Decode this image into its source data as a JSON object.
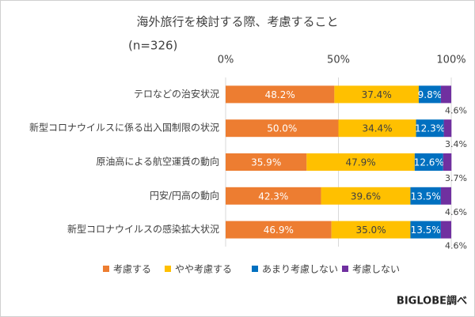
{
  "chart_data": {
    "type": "stacked-bar-horizontal",
    "title": "海外旅行を検討する際、考慮すること",
    "subtitle": "(n=326)",
    "source": "BIGLOBE調べ",
    "categories": [
      "テロなどの治安状況",
      "新型コロナウイルスに係る出入国制限の状況",
      "原油高による航空運賃の動向",
      "円安/円高の動向",
      "新型コロナウイルスの感染拡大状況"
    ],
    "series": [
      {
        "name": "考慮する",
        "color": "#ED7D31",
        "values": [
          48.2,
          50.0,
          35.9,
          42.3,
          46.9
        ],
        "value_labels": [
          "48.2%",
          "50.0%",
          "35.9%",
          "42.3%",
          "46.9%"
        ]
      },
      {
        "name": "やや考慮する",
        "color": "#FFC000",
        "values": [
          37.4,
          34.4,
          47.9,
          39.6,
          35.0
        ],
        "value_labels": [
          "37.4%",
          "34.4%",
          "47.9%",
          "39.6%",
          "35.0%"
        ]
      },
      {
        "name": "あまり考慮しない",
        "color": "#0070C0",
        "values": [
          9.8,
          12.3,
          12.6,
          13.5,
          13.5
        ],
        "value_labels": [
          "9.8%",
          "12.3%",
          "12.6%",
          "13.5%",
          "13.5%"
        ]
      },
      {
        "name": "考慮しない",
        "color": "#7030A0",
        "values": [
          4.6,
          3.4,
          3.7,
          4.6,
          4.6
        ],
        "value_labels": [
          "4.6%",
          "3.4%",
          "3.7%",
          "4.6%",
          "4.6%"
        ]
      }
    ],
    "xlim": [
      0,
      100
    ],
    "xticks": [
      {
        "value": 0,
        "label": "0%"
      },
      {
        "value": 50,
        "label": "50%"
      },
      {
        "value": 100,
        "label": "100%"
      }
    ],
    "grid": true
  }
}
